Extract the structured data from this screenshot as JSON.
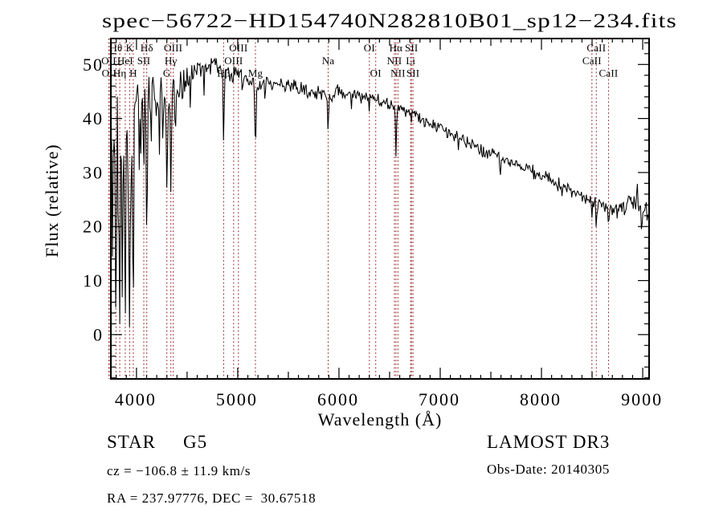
{
  "footer": {
    "class": "STAR",
    "subclass": "G5",
    "cz_line": "cz = −106.8 ± 11.9 km/s",
    "radec_line": "RA = 237.97776, DEC =  30.67518",
    "survey": "LAMOST DR3",
    "obs_date_line": "Obs-Date: 20140305"
  },
  "chart_data": {
    "type": "line",
    "title": "spec−56722−HD154740N282810B01_sp12−234.fits",
    "xlabel": "Wavelength (Å)",
    "ylabel": "Flux (relative)",
    "xlim": [
      3747,
      9063
    ],
    "ylim": [
      -8.2,
      54.8
    ],
    "xticks": [
      4000,
      5000,
      6000,
      7000,
      8000,
      9000
    ],
    "yticks": [
      0,
      10,
      20,
      30,
      40,
      50
    ],
    "x_minor_step": 100,
    "y_minor_step": 2,
    "grid": false,
    "series_color": "#000000",
    "marker_line_color": "#9e3333",
    "noise_seed": 20140305,
    "continuum": [
      [
        3747,
        36
      ],
      [
        3790,
        38
      ],
      [
        3850,
        40
      ],
      [
        3900,
        42
      ],
      [
        3950,
        42.5
      ],
      [
        4000,
        44
      ],
      [
        4060,
        43.5
      ],
      [
        4120,
        43.5
      ],
      [
        4180,
        44.5
      ],
      [
        4240,
        44
      ],
      [
        4300,
        42.5
      ],
      [
        4360,
        44.5
      ],
      [
        4420,
        46
      ],
      [
        4480,
        47
      ],
      [
        4540,
        48
      ],
      [
        4600,
        49
      ],
      [
        4660,
        50
      ],
      [
        4720,
        50.2
      ],
      [
        4780,
        49.8
      ],
      [
        4840,
        49.2
      ],
      [
        4900,
        49.2
      ],
      [
        4960,
        48.8
      ],
      [
        5020,
        48.2
      ],
      [
        5080,
        47.5
      ],
      [
        5140,
        46.2
      ],
      [
        5200,
        45.8
      ],
      [
        5260,
        46.2
      ],
      [
        5320,
        46.6
      ],
      [
        5400,
        46.6
      ],
      [
        5500,
        46.2
      ],
      [
        5600,
        45.8
      ],
      [
        5700,
        45.2
      ],
      [
        5800,
        44.8
      ],
      [
        5900,
        44.2
      ],
      [
        6000,
        45
      ],
      [
        6100,
        44.6
      ],
      [
        6200,
        44.2
      ],
      [
        6300,
        43.8
      ],
      [
        6400,
        43.2
      ],
      [
        6500,
        42.6
      ],
      [
        6600,
        41.8
      ],
      [
        6700,
        41.2
      ],
      [
        6800,
        40.2
      ],
      [
        6900,
        39.2
      ],
      [
        7000,
        38.2
      ],
      [
        7100,
        37.2
      ],
      [
        7200,
        36.2
      ],
      [
        7300,
        35.2
      ],
      [
        7400,
        34.2
      ],
      [
        7500,
        33.4
      ],
      [
        7600,
        32.5
      ],
      [
        7700,
        31.7
      ],
      [
        7800,
        30.9
      ],
      [
        7900,
        30.2
      ],
      [
        8000,
        29.4
      ],
      [
        8100,
        28.4
      ],
      [
        8200,
        27.4
      ],
      [
        8300,
        26.4
      ],
      [
        8400,
        25.6
      ],
      [
        8500,
        24.8
      ],
      [
        8600,
        24
      ],
      [
        8700,
        23.4
      ],
      [
        8800,
        23.8
      ],
      [
        8900,
        24.6
      ],
      [
        9000,
        23.6
      ],
      [
        9063,
        22.5
      ]
    ],
    "noise_amplitude": [
      [
        3747,
        15
      ],
      [
        3800,
        14
      ],
      [
        3850,
        13
      ],
      [
        3900,
        11
      ],
      [
        3950,
        9
      ],
      [
        4000,
        7
      ],
      [
        4100,
        6
      ],
      [
        4200,
        5
      ],
      [
        4300,
        4.5
      ],
      [
        4400,
        3.5
      ],
      [
        4500,
        3
      ],
      [
        4700,
        2.5
      ],
      [
        5000,
        2.2
      ],
      [
        5400,
        1.8
      ],
      [
        6000,
        1.6
      ],
      [
        6500,
        1.5
      ],
      [
        7000,
        1.4
      ],
      [
        7600,
        1.5
      ],
      [
        8200,
        1.6
      ],
      [
        8600,
        1.8
      ],
      [
        9063,
        2.2
      ]
    ],
    "absorption_features": [
      [
        3712,
        8,
        10
      ],
      [
        3727,
        18,
        8
      ],
      [
        3740,
        10,
        9
      ],
      [
        3762,
        14,
        10
      ],
      [
        3775,
        28,
        8
      ],
      [
        3798,
        1,
        13
      ],
      [
        3820,
        22,
        8
      ],
      [
        3835,
        2,
        13
      ],
      [
        3860,
        6,
        10
      ],
      [
        3889,
        2,
        13
      ],
      [
        3912,
        24,
        8
      ],
      [
        3933,
        -1,
        13
      ],
      [
        3950,
        20,
        8
      ],
      [
        3968,
        3,
        13
      ],
      [
        4026,
        30,
        8
      ],
      [
        4046,
        31,
        7
      ],
      [
        4072,
        27,
        9
      ],
      [
        4102,
        16,
        12
      ],
      [
        4144,
        32,
        8
      ],
      [
        4226,
        33,
        9
      ],
      [
        4260,
        36,
        8
      ],
      [
        4300,
        27,
        13
      ],
      [
        4340,
        26,
        12
      ],
      [
        4383,
        34,
        8
      ],
      [
        4455,
        40,
        8
      ],
      [
        4531,
        42,
        8
      ],
      [
        4668,
        44,
        8
      ],
      [
        4861,
        35,
        12
      ],
      [
        4920,
        45,
        6
      ],
      [
        5041,
        44.5,
        6
      ],
      [
        5175,
        34.5,
        14
      ],
      [
        5270,
        42.5,
        8
      ],
      [
        5893,
        37.5,
        12
      ],
      [
        6122,
        41.5,
        6
      ],
      [
        6300,
        41,
        6
      ],
      [
        6495,
        40,
        6
      ],
      [
        6563,
        33,
        12
      ],
      [
        6717,
        38.5,
        6
      ],
      [
        7180,
        34,
        8
      ],
      [
        7594,
        29.5,
        10
      ],
      [
        8205,
        25.5,
        8
      ],
      [
        8498,
        21.5,
        9
      ],
      [
        8542,
        18.5,
        9
      ],
      [
        8662,
        20,
        9
      ],
      [
        8750,
        21,
        8
      ],
      [
        8945,
        29,
        8
      ],
      [
        8990,
        18.5,
        11
      ]
    ],
    "spectral_lines": [
      {
        "label": "Hθ",
        "wavelength": 3798,
        "row": 1
      },
      {
        "label": "K",
        "wavelength": 3933,
        "row": 1
      },
      {
        "label": "Hδ",
        "wavelength": 4102,
        "row": 1
      },
      {
        "label": "OIII",
        "wavelength": 4363,
        "row": 1
      },
      {
        "label": "OIII",
        "wavelength": 5007,
        "row": 1
      },
      {
        "label": "OI",
        "wavelength": 6300,
        "row": 1
      },
      {
        "label": "Hα",
        "wavelength": 6563,
        "row": 1
      },
      {
        "label": "SII",
        "wavelength": 6716,
        "row": 1
      },
      {
        "label": "CaII",
        "wavelength": 8542,
        "row": 1
      },
      {
        "label": "OII",
        "wavelength": 3727,
        "row": 2
      },
      {
        "label": "HeI",
        "wavelength": 3889,
        "row": 2
      },
      {
        "label": "SII",
        "wavelength": 4072,
        "row": 2
      },
      {
        "label": "Hγ",
        "wavelength": 4340,
        "row": 2
      },
      {
        "label": "OIII",
        "wavelength": 4959,
        "row": 2
      },
      {
        "label": "Na",
        "wavelength": 5893,
        "row": 2
      },
      {
        "label": "NII",
        "wavelength": 6548,
        "row": 2
      },
      {
        "label": "Li",
        "wavelength": 6708,
        "row": 2
      },
      {
        "label": "CaII",
        "wavelength": 8498,
        "row": 2
      },
      {
        "label": "OII",
        "wavelength": 3730,
        "row": 3
      },
      {
        "label": "Hη",
        "wavelength": 3835,
        "row": 3
      },
      {
        "label": "H",
        "wavelength": 3968,
        "row": 3
      },
      {
        "label": "G",
        "wavelength": 4300,
        "row": 3
      },
      {
        "label": "Hβ",
        "wavelength": 4861,
        "row": 3
      },
      {
        "label": "Mg",
        "wavelength": 5175,
        "row": 3
      },
      {
        "label": "OI",
        "wavelength": 6363,
        "row": 3
      },
      {
        "label": "NII",
        "wavelength": 6583,
        "row": 3
      },
      {
        "label": "SII",
        "wavelength": 6731,
        "row": 3
      },
      {
        "label": "CaII",
        "wavelength": 8662,
        "row": 3
      }
    ]
  }
}
